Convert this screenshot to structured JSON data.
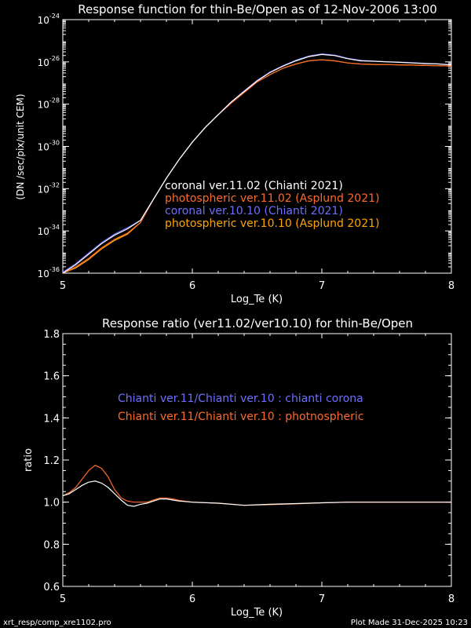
{
  "footer": {
    "left": "xrt_resp/comp_xre1102.pro",
    "right": "Plot Made 31-Dec-2025 10:23"
  },
  "colors": {
    "background": "#000000",
    "axis": "#ffffff",
    "coronal_v11": "#ffffff",
    "photospheric_v11": "#ff6a2a",
    "coronal_v10": "#6f6fff",
    "photospheric_v10": "#ffa500",
    "ratio_corona": "#ffffff",
    "ratio_photo": "#ff6a2a",
    "legend_ratio_corona": "#6f6fff",
    "legend_ratio_photo": "#ff6a2a"
  },
  "chart_data": [
    {
      "type": "line",
      "title": "Response function for thin-Be/Open as of 12-Nov-2006 13:00",
      "xlabel": "Log_Te (K)",
      "ylabel": "(DN /sec/pix/unit CEM)",
      "xlim": [
        5,
        8
      ],
      "ylim": [
        -36,
        -24
      ],
      "yscale": "log",
      "x_ticks": [
        "5",
        "6",
        "7",
        "8"
      ],
      "y_ticks": [
        {
          "base": "10",
          "exp": "-36"
        },
        {
          "base": "10",
          "exp": "-34"
        },
        {
          "base": "10",
          "exp": "-32"
        },
        {
          "base": "10",
          "exp": "-30"
        },
        {
          "base": "10",
          "exp": "-28"
        },
        {
          "base": "10",
          "exp": "-26"
        },
        {
          "base": "10",
          "exp": "-24"
        }
      ],
      "legend_position": "center",
      "series": [
        {
          "name": "coronal ver.11.02 (Chianti 2021)",
          "color": "#ffffff",
          "x": [
            5.0,
            5.1,
            5.2,
            5.3,
            5.4,
            5.5,
            5.6,
            5.7,
            5.8,
            5.9,
            6.0,
            6.1,
            6.2,
            6.3,
            6.4,
            6.5,
            6.6,
            6.7,
            6.8,
            6.9,
            7.0,
            7.1,
            7.2,
            7.3,
            7.4,
            7.5,
            7.6,
            7.7,
            7.8,
            7.9,
            8.0
          ],
          "log10y": [
            -36.0,
            -35.6,
            -35.1,
            -34.6,
            -34.2,
            -33.9,
            -33.5,
            -32.5,
            -31.5,
            -30.6,
            -29.8,
            -29.1,
            -28.5,
            -27.9,
            -27.4,
            -26.9,
            -26.5,
            -26.2,
            -25.95,
            -25.75,
            -25.65,
            -25.7,
            -25.85,
            -25.95,
            -25.97,
            -26.0,
            -26.02,
            -26.05,
            -26.08,
            -26.1,
            -26.15
          ]
        },
        {
          "name": "photospheric ver.11.02 (Asplund 2021)",
          "color": "#ff6a2a",
          "x": [
            5.0,
            5.1,
            5.2,
            5.3,
            5.4,
            5.5,
            5.6,
            5.7,
            5.8,
            5.9,
            6.0,
            6.1,
            6.2,
            6.3,
            6.4,
            6.5,
            6.6,
            6.7,
            6.8,
            6.9,
            7.0,
            7.1,
            7.2,
            7.3,
            7.4,
            7.5,
            7.6,
            7.7,
            7.8,
            7.9,
            8.0
          ],
          "log10y": [
            -36.0,
            -35.7,
            -35.3,
            -34.8,
            -34.4,
            -34.1,
            -33.6,
            -32.5,
            -31.5,
            -30.6,
            -29.8,
            -29.1,
            -28.5,
            -27.95,
            -27.45,
            -26.95,
            -26.6,
            -26.3,
            -26.1,
            -25.95,
            -25.9,
            -25.95,
            -26.05,
            -26.1,
            -26.12,
            -26.13,
            -26.14,
            -26.15,
            -26.17,
            -26.18,
            -26.2
          ]
        },
        {
          "name": "coronal ver.10.10 (Chianti 2021)",
          "color": "#6f6fff",
          "x": [
            5.0,
            5.1,
            5.2,
            5.3,
            5.4,
            5.5,
            5.6,
            5.7,
            5.8,
            5.9,
            6.0,
            6.1,
            6.2,
            6.3,
            6.4,
            6.5,
            6.6,
            6.7,
            6.8,
            6.9,
            7.0,
            7.1,
            7.2,
            7.3,
            7.4,
            7.5,
            7.6,
            7.7,
            7.8,
            7.9,
            8.0
          ],
          "log10y": [
            -35.95,
            -35.55,
            -35.05,
            -34.55,
            -34.15,
            -33.85,
            -33.5,
            -32.5,
            -31.5,
            -30.6,
            -29.8,
            -29.1,
            -28.5,
            -27.9,
            -27.38,
            -26.88,
            -26.48,
            -26.18,
            -25.92,
            -25.72,
            -25.62,
            -25.68,
            -25.83,
            -25.93,
            -25.96,
            -25.99,
            -26.01,
            -26.04,
            -26.07,
            -26.09,
            -26.14
          ]
        },
        {
          "name": "photospheric ver.10.10 (Asplund 2021)",
          "color": "#ffa500",
          "x": [
            5.0,
            5.1,
            5.2,
            5.3,
            5.4,
            5.5,
            5.6,
            5.7,
            5.8,
            5.9,
            6.0,
            6.1,
            6.2,
            6.3,
            6.4,
            6.5,
            6.6,
            6.7,
            6.8,
            6.9,
            7.0,
            7.1,
            7.2,
            7.3,
            7.4,
            7.5,
            7.6,
            7.7,
            7.8,
            7.9,
            8.0
          ],
          "log10y": [
            -36.0,
            -35.75,
            -35.35,
            -34.85,
            -34.45,
            -34.15,
            -33.6,
            -32.5,
            -31.5,
            -30.6,
            -29.8,
            -29.1,
            -28.5,
            -27.95,
            -27.45,
            -26.95,
            -26.6,
            -26.3,
            -26.1,
            -25.95,
            -25.9,
            -25.95,
            -26.05,
            -26.1,
            -26.12,
            -26.13,
            -26.14,
            -26.15,
            -26.17,
            -26.18,
            -26.2
          ]
        }
      ]
    },
    {
      "type": "line",
      "title": "Response ratio (ver11.02/ver10.10) for thin-Be/Open",
      "xlabel": "Log_Te (K)",
      "ylabel": "ratio",
      "xlim": [
        5,
        8
      ],
      "ylim": [
        0.6,
        1.8
      ],
      "x_ticks": [
        "5",
        "6",
        "7",
        "8"
      ],
      "y_ticks": [
        "0.6",
        "0.8",
        "1.0",
        "1.2",
        "1.4",
        "1.6",
        "1.8"
      ],
      "legend_position": "center",
      "series": [
        {
          "name": "Chianti ver.11/Chianti ver.10 : chianti corona",
          "color": "#ffffff",
          "x": [
            5.0,
            5.05,
            5.1,
            5.15,
            5.2,
            5.25,
            5.3,
            5.35,
            5.4,
            5.45,
            5.5,
            5.55,
            5.6,
            5.65,
            5.7,
            5.75,
            5.8,
            5.85,
            5.9,
            6.0,
            6.2,
            6.4,
            6.6,
            6.8,
            7.0,
            7.2,
            7.5,
            8.0
          ],
          "y": [
            1.03,
            1.04,
            1.06,
            1.08,
            1.095,
            1.1,
            1.09,
            1.07,
            1.04,
            1.01,
            0.985,
            0.98,
            0.99,
            0.995,
            1.005,
            1.015,
            1.015,
            1.01,
            1.005,
            1.0,
            0.995,
            0.985,
            0.99,
            0.993,
            0.997,
            1.0,
            1.0,
            1.0
          ]
        },
        {
          "name": "Chianti ver.11/Chianti ver.10 : photnospheric",
          "color": "#ff6a2a",
          "x": [
            5.0,
            5.05,
            5.1,
            5.15,
            5.2,
            5.25,
            5.3,
            5.35,
            5.4,
            5.45,
            5.5,
            5.55,
            5.6,
            5.65,
            5.7,
            5.75,
            5.8,
            5.85,
            5.9,
            6.0,
            6.2,
            6.4,
            6.6,
            6.8,
            7.0,
            7.2,
            7.5,
            8.0
          ],
          "y": [
            1.03,
            1.045,
            1.07,
            1.11,
            1.15,
            1.175,
            1.16,
            1.12,
            1.06,
            1.02,
            1.005,
            1.0,
            1.0,
            1.0,
            1.01,
            1.02,
            1.02,
            1.015,
            1.008,
            1.0,
            0.995,
            0.985,
            0.988,
            0.992,
            0.997,
            1.0,
            1.0,
            1.0
          ]
        }
      ]
    }
  ]
}
